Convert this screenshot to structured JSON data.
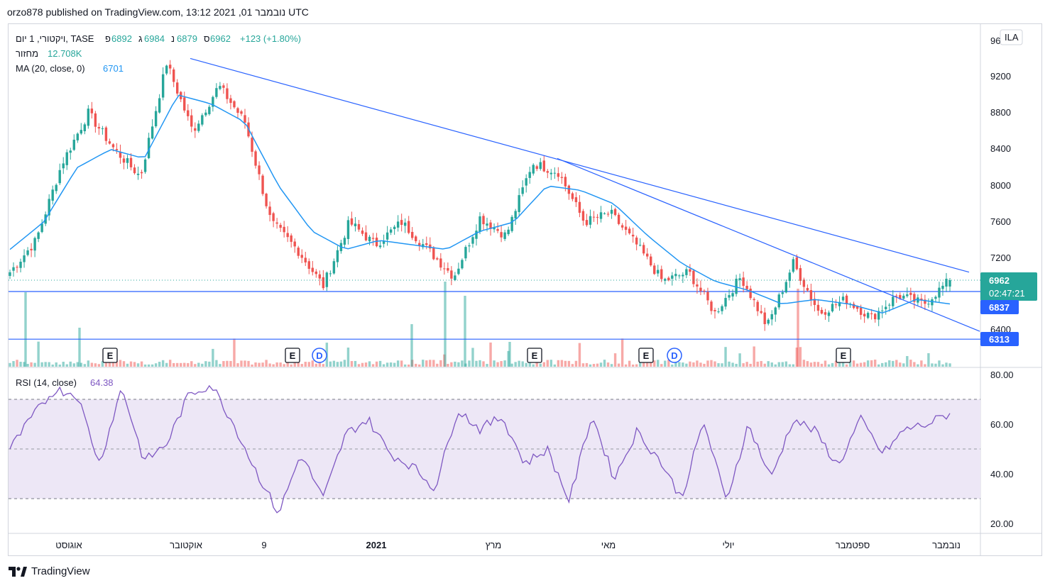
{
  "header": {
    "text": "orzo878 published on TradingView.com, נובמבר 01, 2021 13:12 UTC"
  },
  "legend": {
    "symbol": "ויקטורי, 1 יום, TASE",
    "ohlc": [
      {
        "label": "פ",
        "value": "6892"
      },
      {
        "label": "ג",
        "value": "6984"
      },
      {
        "label": "נ",
        "value": "6879"
      },
      {
        "label": "ס",
        "value": "6962"
      }
    ],
    "change": "+123 (+1.80%)",
    "volume_label": "מחזור",
    "volume_value": "12.708K",
    "ma_label": "MA (20, close, 0)",
    "ma_value": "6701"
  },
  "rsi_legend": {
    "label": "RSI (14, close)",
    "value": "64.38"
  },
  "currency_badge": "ILA",
  "price_axis": {
    "ticks": [
      "96",
      "9200",
      "8800",
      "8400",
      "8000",
      "7600",
      "7200",
      "6962",
      "6400"
    ]
  },
  "rsi_axis": {
    "ticks": [
      "80.00",
      "60.00",
      "40.00",
      "20.00"
    ]
  },
  "price_labels": {
    "last": "6962",
    "countdown": "02:47:21",
    "level_1": "6837",
    "level_2": "6313"
  },
  "time_axis": {
    "ticks": [
      "אוגוסט",
      "אוקטובר",
      "9",
      "2021",
      "מרץ",
      "מאי",
      "יולי",
      "ספטמבר",
      "נובמבר"
    ]
  },
  "event_markers": [
    "E",
    "E",
    "D",
    "E",
    "E",
    "D",
    "E"
  ],
  "footer": {
    "brand": "TradingView"
  },
  "colors": {
    "up": "#26a69a",
    "down": "#ef5350",
    "ma": "#2196f3",
    "trendline": "#2962ff",
    "rsi": "#7e57c2",
    "rsi_band": "#ede7f6"
  },
  "chart_data": [
    {
      "type": "candlestick",
      "series_name": "ויקטורי, 1 יום, TASE",
      "x": [
        "אוגוסט",
        "אוקטובר",
        "9",
        "2021",
        "מרץ",
        "מאי",
        "יולי",
        "ספטמבר",
        "נובמבר"
      ],
      "close_path": [
        7050,
        7400,
        8250,
        8800,
        8400,
        8100,
        9350,
        8600,
        9100,
        8700,
        7600,
        7300,
        6900,
        7600,
        7350,
        7600,
        7300,
        7000,
        7650,
        7450,
        8250,
        8150,
        7600,
        7700,
        7350,
        6950,
        7050,
        6600,
        7000,
        6450,
        7150,
        6600,
        6750,
        6550,
        6800,
        6700,
        6962
      ],
      "ma_path": [
        7300,
        7600,
        8200,
        8400,
        8300,
        9000,
        8900,
        8700,
        8000,
        7500,
        7300,
        7400,
        7350,
        7300,
        7500,
        7600,
        8000,
        7950,
        7800,
        7450,
        7150,
        6950,
        6850,
        6700,
        6750,
        6700,
        6600,
        6750,
        6701
      ],
      "last": 6962,
      "horizontal_levels": [
        6837,
        6313
      ],
      "trendlines": [
        {
          "from": [
            9400,
            "אוקטובר"
          ],
          "to": [
            7050,
            "נובמבר"
          ]
        },
        {
          "from": [
            8300,
            "מרץ"
          ],
          "to": [
            6400,
            "נובמבר"
          ]
        }
      ],
      "ylim": [
        6300,
        9700
      ]
    },
    {
      "type": "line",
      "series_name": "RSI (14, close)",
      "values": [
        50,
        63,
        74,
        72,
        44,
        75,
        45,
        52,
        72,
        76,
        60,
        41,
        24,
        48,
        30,
        56,
        62,
        48,
        43,
        34,
        66,
        58,
        63,
        44,
        50,
        29,
        64,
        38,
        57,
        46,
        30,
        61,
        29,
        60,
        38,
        62,
        57,
        43,
        62,
        48,
        58,
        60,
        64.38
      ],
      "ylim": [
        20,
        80
      ],
      "band": [
        30,
        70
      ],
      "midline": 50
    }
  ]
}
